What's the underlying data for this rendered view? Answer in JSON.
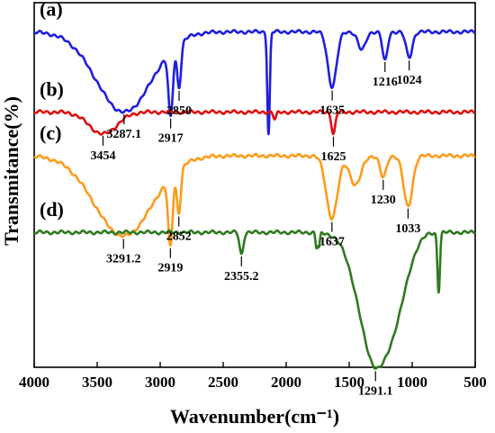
{
  "chart_data": {
    "type": "line",
    "xlabel": "Wavenumber(cm⁻¹)",
    "ylabel": "Transmitance(%)",
    "xlim": [
      4000,
      500
    ],
    "x_reversed": true,
    "x_ticks": [
      4000,
      3500,
      3000,
      2500,
      2000,
      1500,
      1000,
      500
    ],
    "x_tick_labels": [
      "4000",
      "3500",
      "3000",
      "2500",
      "2000",
      "1500",
      "1000",
      "500"
    ],
    "grid": false,
    "legend": "none",
    "y_tick_labels_shown": false,
    "series": [
      {
        "label": "(a)",
        "color": "#1f1fe0",
        "baseline": 0.92,
        "features": [
          {
            "center": 3287,
            "width": 220,
            "depth": 0.22
          },
          {
            "center": 2917,
            "width": 18,
            "depth": 0.18
          },
          {
            "center": 2850,
            "width": 16,
            "depth": 0.12
          },
          {
            "center": 2140,
            "width": 10,
            "depth": 0.28
          },
          {
            "center": 1635,
            "width": 35,
            "depth": 0.15
          },
          {
            "center": 1216,
            "width": 20,
            "depth": 0.08
          },
          {
            "center": 1024,
            "width": 25,
            "depth": 0.07
          },
          {
            "center": 1400,
            "width": 30,
            "depth": 0.05
          }
        ],
        "annotations": [
          {
            "x": 3287.1,
            "text": "3287.1"
          },
          {
            "x": 2917,
            "text": "2917"
          },
          {
            "x": 2850,
            "text": "2850"
          },
          {
            "x": 1635,
            "text": "1635"
          },
          {
            "x": 1216,
            "text": "1216"
          },
          {
            "x": 1024,
            "text": "1024"
          }
        ]
      },
      {
        "label": "(b)",
        "color": "#e01010",
        "baseline": 0.7,
        "features": [
          {
            "center": 3454,
            "width": 110,
            "depth": 0.06
          },
          {
            "center": 2090,
            "width": 12,
            "depth": 0.02
          },
          {
            "center": 1625,
            "width": 15,
            "depth": 0.06
          }
        ],
        "annotations": [
          {
            "x": 3454,
            "text": "3454"
          },
          {
            "x": 1625,
            "text": "1625"
          }
        ]
      },
      {
        "label": "(c)",
        "color": "#ff9a1a",
        "baseline": 0.58,
        "features": [
          {
            "center": 3291,
            "width": 230,
            "depth": 0.22
          },
          {
            "center": 2919,
            "width": 18,
            "depth": 0.19
          },
          {
            "center": 2852,
            "width": 16,
            "depth": 0.12
          },
          {
            "center": 1637,
            "width": 45,
            "depth": 0.17
          },
          {
            "center": 1450,
            "width": 45,
            "depth": 0.08
          },
          {
            "center": 1230,
            "width": 25,
            "depth": 0.06
          },
          {
            "center": 1033,
            "width": 35,
            "depth": 0.14
          }
        ],
        "annotations": [
          {
            "x": 3291.2,
            "text": "3291.2"
          },
          {
            "x": 2919,
            "text": "2919"
          },
          {
            "x": 2852,
            "text": "2852"
          },
          {
            "x": 1637,
            "text": "1637"
          },
          {
            "x": 1230,
            "text": "1230"
          },
          {
            "x": 1033,
            "text": "1033"
          }
        ]
      },
      {
        "label": "(d)",
        "color": "#2f7a1f",
        "baseline": 0.37,
        "features": [
          {
            "center": 2355,
            "width": 15,
            "depth": 0.06
          },
          {
            "center": 1760,
            "width": 8,
            "depth": 0.04
          },
          {
            "center": 1740,
            "width": 8,
            "depth": 0.04
          },
          {
            "center": 1291,
            "width": 130,
            "depth": 0.36
          },
          {
            "center": 1100,
            "width": 90,
            "depth": 0.1
          },
          {
            "center": 790,
            "width": 10,
            "depth": 0.16
          }
        ],
        "annotations": [
          {
            "x": 2355.2,
            "text": "2355.2"
          },
          {
            "x": 1291.1,
            "text": "1291.1"
          }
        ]
      }
    ]
  }
}
